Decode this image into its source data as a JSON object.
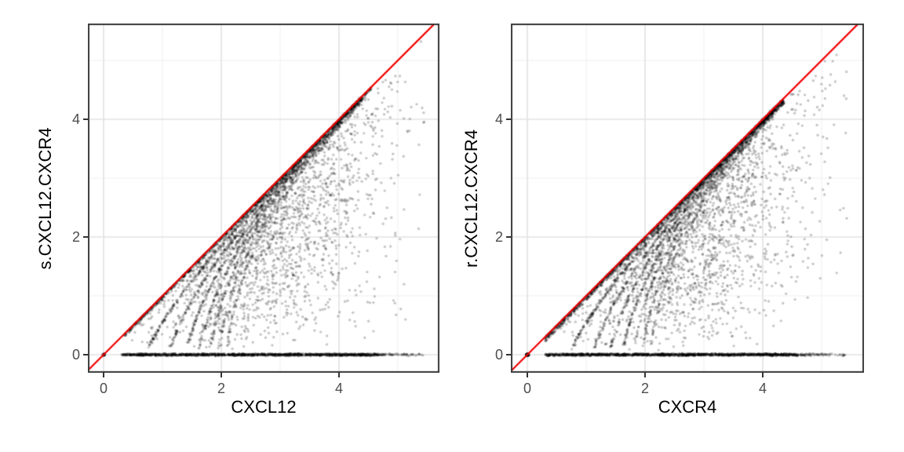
{
  "figure": {
    "background": "#ffffff"
  },
  "style": {
    "panel_background": "#ffffff",
    "panel_border": "#3a3a3a",
    "grid_major": "#e3e3e3",
    "grid_minor": "#f1f1f1",
    "tick_mark_color": "#333333",
    "tick_label_color": "#4d4d4d",
    "axis_title_color": "#000000",
    "identity_line_color": "#f20000",
    "point_color": "#000000",
    "point_alpha": 0.22
  },
  "chart_data": [
    {
      "type": "scatter",
      "title": "",
      "xlabel": "CXCL12",
      "ylabel": "s.CXCL12.CXCR4",
      "xlim": [
        -0.27,
        5.71
      ],
      "ylim": [
        -0.31,
        5.63
      ],
      "xticks": {
        "values": [
          0,
          2,
          4
        ],
        "labels": [
          "0",
          "2",
          "4"
        ]
      },
      "yticks": {
        "values": [
          0,
          2,
          4
        ],
        "labels": [
          "0",
          "2",
          "4"
        ]
      },
      "x_minor": [
        1,
        3,
        5
      ],
      "y_minor": [
        1,
        3,
        5
      ],
      "grid": "major+minor",
      "legend": "none",
      "identity_line": {
        "slope": 1,
        "intercept": 0,
        "color": "#f20000",
        "width": 2.2
      },
      "points": {
        "color": "#000000",
        "alpha": 0.22,
        "radius": 1.7,
        "total_approx": 5600
      },
      "generation": {
        "zero_stripe": {
          "y": 0,
          "x_range": [
            0.3,
            4.68
          ],
          "n": 1400,
          "tail_x_range": [
            4.68,
            5.45
          ],
          "tail_n": 60,
          "y_jitter": 0.028
        },
        "origin_cluster": {
          "x": 0,
          "y": 0,
          "n": 30,
          "jitter": 0.03
        },
        "diagonal_band": {
          "x_range": [
            0.35,
            4.55
          ],
          "offset_max": 0.05,
          "n": 950
        },
        "count_bands": {
          "formula": "y = ln(exp(x) - k)",
          "k": [
            1,
            2,
            3,
            4,
            5,
            6,
            7
          ],
          "n": [
            380,
            300,
            250,
            210,
            175,
            145,
            120
          ],
          "y_range": [
            0.12,
            4.35
          ]
        },
        "cloud": {
          "n": 1800,
          "x_mean": 3.05,
          "x_sd": 0.95,
          "x_clip": [
            0.45,
            5.45
          ]
        }
      }
    },
    {
      "type": "scatter",
      "title": "",
      "xlabel": "CXCR4",
      "ylabel": "r.CXCL12.CXCR4",
      "xlim": [
        -0.28,
        5.72
      ],
      "ylim": [
        -0.31,
        5.63
      ],
      "xticks": {
        "values": [
          0,
          2,
          4
        ],
        "labels": [
          "0",
          "2",
          "4"
        ]
      },
      "yticks": {
        "values": [
          0,
          2,
          4
        ],
        "labels": [
          "0",
          "2",
          "4"
        ]
      },
      "x_minor": [
        1,
        3,
        5
      ],
      "y_minor": [
        1,
        3,
        5
      ],
      "grid": "major+minor",
      "legend": "none",
      "identity_line": {
        "slope": 1,
        "intercept": 0,
        "color": "#f20000",
        "width": 2.2
      },
      "points": {
        "color": "#000000",
        "alpha": 0.22,
        "radius": 1.7,
        "total_approx": 6000
      },
      "generation": {
        "zero_stripe": {
          "y": 0,
          "x_range": [
            0.3,
            4.6
          ],
          "n": 1450,
          "tail_x_range": [
            4.6,
            5.4
          ],
          "tail_n": 70,
          "y_jitter": 0.028
        },
        "origin_cluster": {
          "x": 0,
          "y": 0,
          "n": 70,
          "jitter": 0.035
        },
        "diagonal_band": {
          "x_range": [
            0.3,
            4.35
          ],
          "offset_max": 0.08,
          "n": 1350
        },
        "count_bands": {
          "formula": "y = ln(exp(x) - k)",
          "k": [
            1,
            2,
            3,
            4,
            5,
            6,
            7
          ],
          "n": [
            380,
            300,
            250,
            210,
            175,
            145,
            120
          ],
          "y_range": [
            0.12,
            4.3
          ]
        },
        "cloud": {
          "n": 1750,
          "x_mean": 3.0,
          "x_sd": 0.95,
          "x_clip": [
            0.45,
            5.45
          ]
        }
      }
    }
  ]
}
